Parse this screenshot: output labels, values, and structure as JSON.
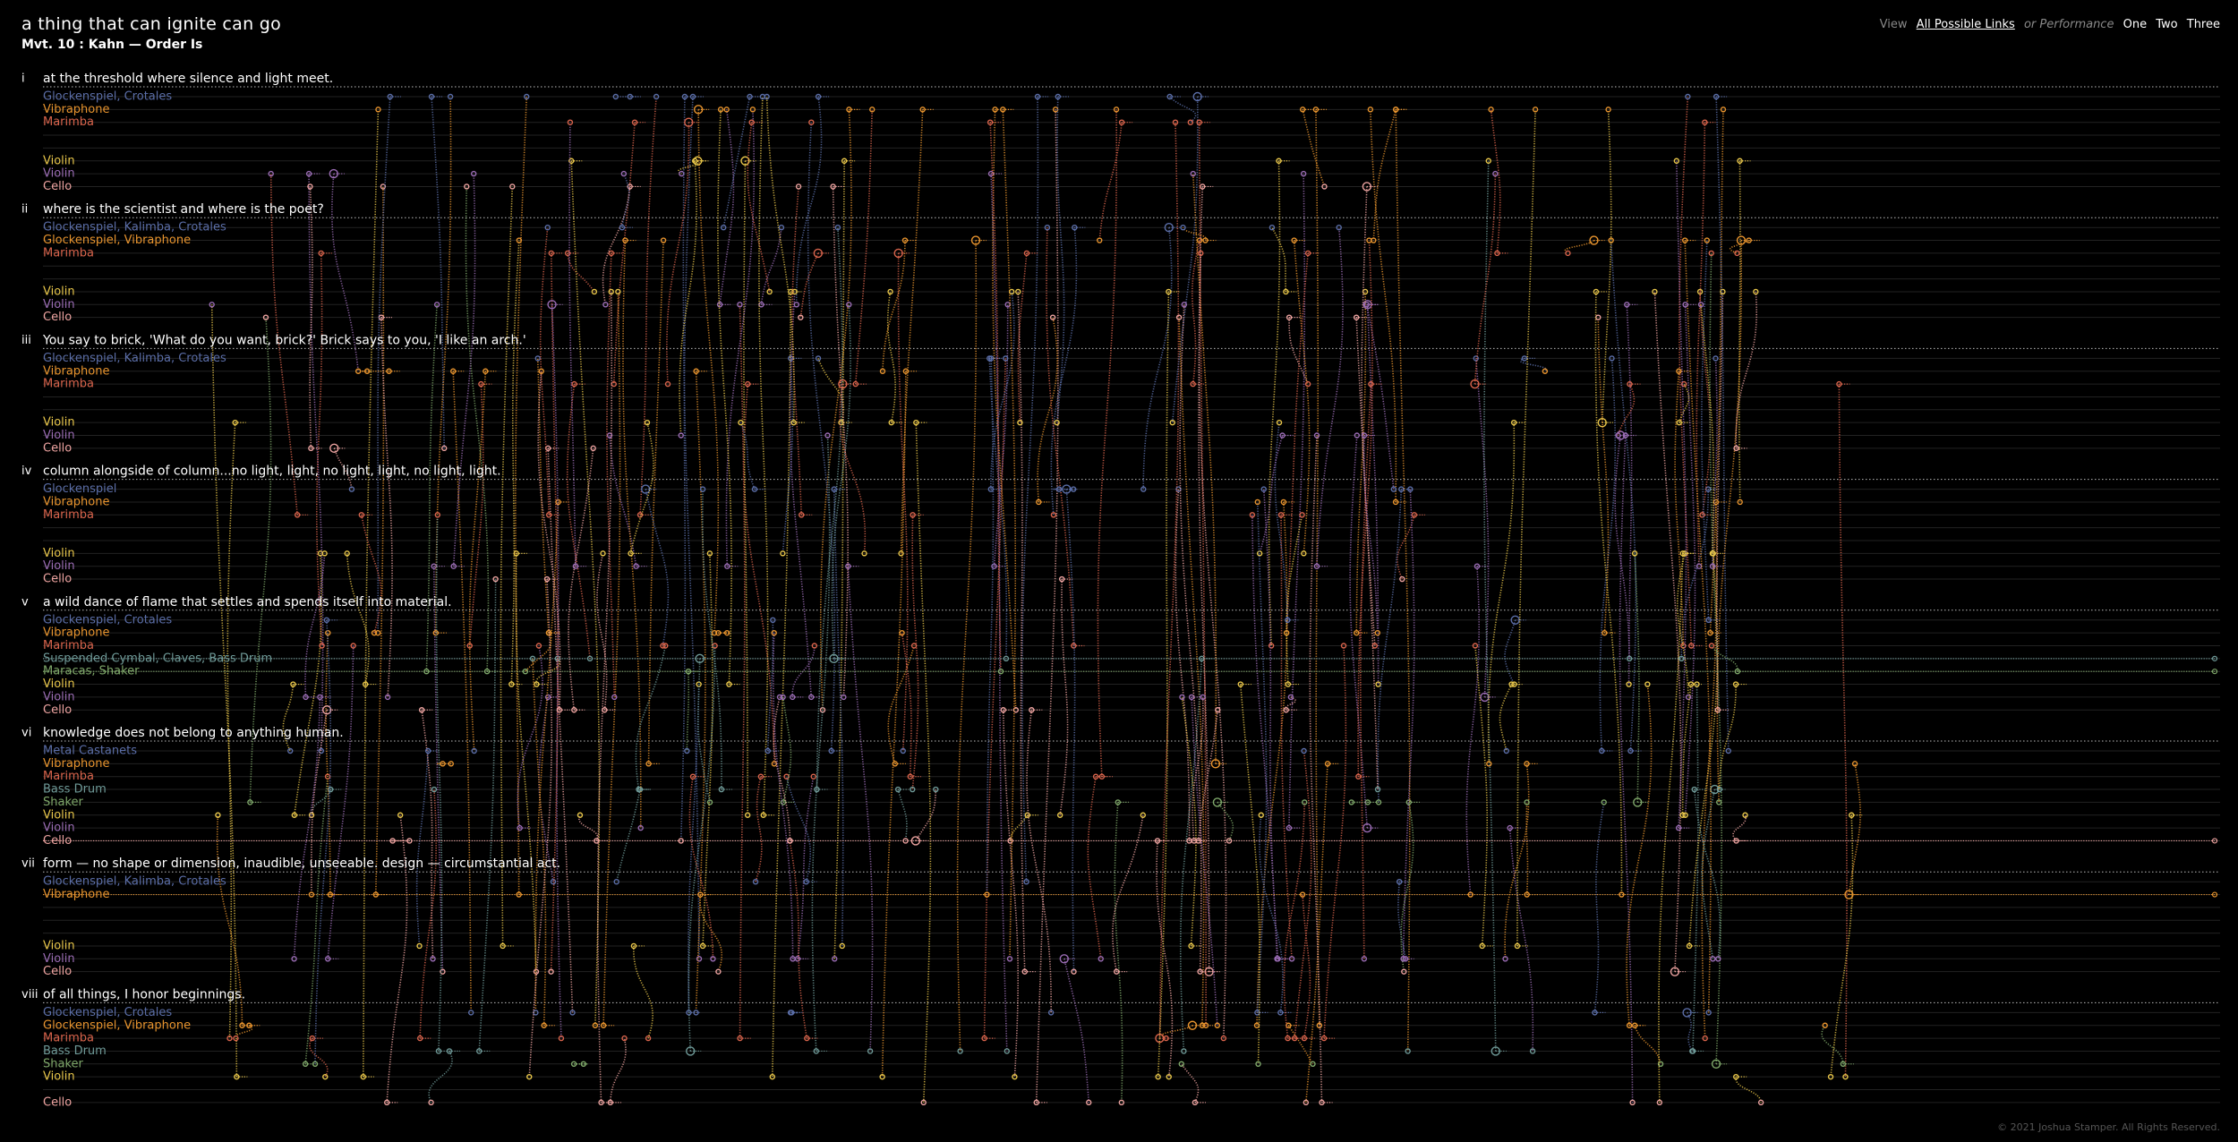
{
  "header": {
    "title": "a thing that can ignite can go",
    "subtitle": "Mvt. 10 : Kahn — Order Is"
  },
  "nav": {
    "view_label": "View",
    "all_links": "All Possible Links",
    "or_label": "or Performance",
    "performances": [
      "One",
      "Two",
      "Three"
    ]
  },
  "sections": [
    {
      "numeral": "i",
      "text": "at the threshold where silence and light meet.",
      "instruments": [
        {
          "name": "Glockenspiel, Crotales",
          "color": "#5b6ea8"
        },
        {
          "name": "Vibraphone",
          "color": "#e8942e"
        },
        {
          "name": "Marimba",
          "color": "#d9644c"
        },
        null,
        null,
        {
          "name": "Violin",
          "color": "#e8c64a"
        },
        {
          "name": "Violin",
          "color": "#9a6cb4"
        },
        {
          "name": "Cello",
          "color": "#eda3a0"
        }
      ]
    },
    {
      "numeral": "ii",
      "text": "where is the scientist and where is the poet?",
      "instruments": [
        {
          "name": "Glockenspiel, Kalimba, Crotales",
          "color": "#5b6ea8"
        },
        {
          "name": "Glockenspiel, Vibraphone",
          "color": "#e8942e"
        },
        {
          "name": "Marimba",
          "color": "#d9644c"
        },
        null,
        null,
        {
          "name": "Violin",
          "color": "#e8c64a"
        },
        {
          "name": "Violin",
          "color": "#9a6cb4"
        },
        {
          "name": "Cello",
          "color": "#eda3a0"
        }
      ]
    },
    {
      "numeral": "iii",
      "text": "You say to brick, 'What do you want, brick?' Brick says to you, 'I like an arch.'",
      "instruments": [
        {
          "name": "Glockenspiel, Kalimba, Crotales",
          "color": "#5b6ea8"
        },
        {
          "name": "Vibraphone",
          "color": "#e8942e"
        },
        {
          "name": "Marimba",
          "color": "#d9644c"
        },
        null,
        null,
        {
          "name": "Violin",
          "color": "#e8c64a"
        },
        {
          "name": "Violin",
          "color": "#9a6cb4"
        },
        {
          "name": "Cello",
          "color": "#eda3a0"
        }
      ]
    },
    {
      "numeral": "iv",
      "text": "column alongside of column...no light, light, no light, light, no light, light.",
      "instruments": [
        {
          "name": "Glockenspiel",
          "color": "#5b6ea8"
        },
        {
          "name": "Vibraphone",
          "color": "#e8942e"
        },
        {
          "name": "Marimba",
          "color": "#d9644c"
        },
        null,
        null,
        {
          "name": "Violin",
          "color": "#e8c64a"
        },
        {
          "name": "Violin",
          "color": "#9a6cb4"
        },
        {
          "name": "Cello",
          "color": "#eda3a0"
        }
      ]
    },
    {
      "numeral": "v",
      "text": "a wild dance of flame that settles and spends itself into material.",
      "instruments": [
        {
          "name": "Glockenspiel, Crotales",
          "color": "#5b6ea8"
        },
        {
          "name": "Vibraphone",
          "color": "#e8942e"
        },
        {
          "name": "Marimba",
          "color": "#d9644c"
        },
        {
          "name": "Suspended Cymbal, Claves, Bass Drum",
          "color": "#6f9a98"
        },
        {
          "name": "Maracas, Shaker",
          "color": "#7fa86a"
        },
        {
          "name": "Violin",
          "color": "#e8c64a"
        },
        {
          "name": "Violin",
          "color": "#9a6cb4"
        },
        {
          "name": "Cello",
          "color": "#eda3a0"
        }
      ]
    },
    {
      "numeral": "vi",
      "text": "knowledge does not belong to anything human.",
      "instruments": [
        {
          "name": "Metal Castanets",
          "color": "#5b6ea8"
        },
        {
          "name": "Vibraphone",
          "color": "#e8942e"
        },
        {
          "name": "Marimba",
          "color": "#d9644c"
        },
        {
          "name": "Bass Drum",
          "color": "#6f9a98"
        },
        {
          "name": "Shaker",
          "color": "#7fa86a"
        },
        {
          "name": "Violin",
          "color": "#e8c64a"
        },
        {
          "name": "Violin",
          "color": "#9a6cb4"
        },
        {
          "name": "Cello",
          "color": "#eda3a0"
        }
      ]
    },
    {
      "numeral": "vii",
      "text": "form — no shape or dimension, inaudible, unseeable. design — circumstantial act.",
      "instruments": [
        {
          "name": "Glockenspiel, Kalimba, Crotales",
          "color": "#5b6ea8"
        },
        {
          "name": "Vibraphone",
          "color": "#e8942e"
        },
        null,
        null,
        null,
        {
          "name": "Violin",
          "color": "#e8c64a"
        },
        {
          "name": "Violin",
          "color": "#9a6cb4"
        },
        {
          "name": "Cello",
          "color": "#eda3a0"
        }
      ]
    },
    {
      "numeral": "viii",
      "text": "of all things, I honor beginnings.",
      "instruments": [
        {
          "name": "Glockenspiel, Crotales",
          "color": "#5b6ea8"
        },
        {
          "name": "Glockenspiel, Vibraphone",
          "color": "#e8942e"
        },
        {
          "name": "Marimba",
          "color": "#d9644c"
        },
        {
          "name": "Bass Drum",
          "color": "#6f9a98"
        },
        {
          "name": "Shaker",
          "color": "#7fa86a"
        },
        {
          "name": "Violin",
          "color": "#e8c64a"
        },
        null,
        {
          "name": "Cello",
          "color": "#eda3a0"
        }
      ]
    }
  ],
  "footer": "© 2021 Joshua Stamper. All Rights Reserved."
}
